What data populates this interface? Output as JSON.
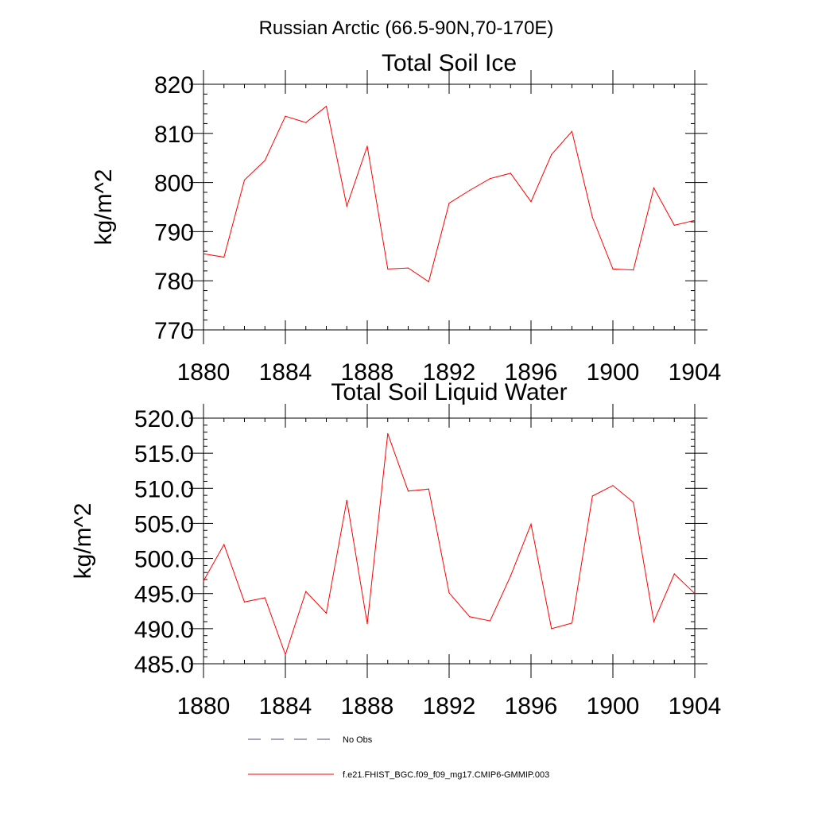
{
  "figure": {
    "main_title": "Russian Arctic (66.5-90N,70-170E)"
  },
  "chart_data": [
    {
      "type": "line",
      "title": "Total Soil Ice",
      "xlabel": "",
      "ylabel": "kg/m^2",
      "xlim": [
        1880,
        1904
      ],
      "ylim": [
        770,
        820
      ],
      "x_ticks": [
        1880,
        1884,
        1888,
        1892,
        1896,
        1900,
        1904
      ],
      "x_tick_labels": [
        "1880",
        "1884",
        "1888",
        "1892",
        "1896",
        "1900",
        "1904"
      ],
      "y_ticks": [
        770,
        780,
        790,
        800,
        810,
        820
      ],
      "y_tick_labels": [
        "770",
        "780",
        "790",
        "800",
        "810",
        "820"
      ],
      "grid": false,
      "series": [
        {
          "name": "f.e21.FHIST_BGC.f09_f09_mg17.CMIP6-GMMIP.003",
          "color": "#ff0000",
          "x": [
            1880,
            1881,
            1882,
            1883,
            1884,
            1885,
            1886,
            1887,
            1888,
            1889,
            1890,
            1891,
            1892,
            1893,
            1894,
            1895,
            1896,
            1897,
            1898,
            1899,
            1900,
            1901,
            1902,
            1903,
            1904
          ],
          "values": [
            785.5,
            784.8,
            800.5,
            804.5,
            813.5,
            812.2,
            815.5,
            795.2,
            807.4,
            782.4,
            782.6,
            779.8,
            795.8,
            798.4,
            800.8,
            801.9,
            796.1,
            805.7,
            810.4,
            792.9,
            782.4,
            782.2,
            798.9,
            791.3,
            792.3
          ]
        }
      ]
    },
    {
      "type": "line",
      "title": "Total Soil Liquid Water",
      "xlabel": "",
      "ylabel": "kg/m^2",
      "xlim": [
        1880,
        1904
      ],
      "ylim": [
        485,
        520
      ],
      "x_ticks": [
        1880,
        1884,
        1888,
        1892,
        1896,
        1900,
        1904
      ],
      "x_tick_labels": [
        "1880",
        "1884",
        "1888",
        "1892",
        "1896",
        "1900",
        "1904"
      ],
      "y_ticks": [
        485,
        490,
        495,
        500,
        505,
        510,
        515,
        520
      ],
      "y_tick_labels": [
        "485.0",
        "490.0",
        "495.0",
        "500.0",
        "505.0",
        "510.0",
        "515.0",
        "520.0"
      ],
      "grid": false,
      "series": [
        {
          "name": "f.e21.FHIST_BGC.f09_f09_mg17.CMIP6-GMMIP.003",
          "color": "#ff0000",
          "x": [
            1880,
            1881,
            1882,
            1883,
            1884,
            1885,
            1886,
            1887,
            1888,
            1889,
            1890,
            1891,
            1892,
            1893,
            1894,
            1895,
            1896,
            1897,
            1898,
            1899,
            1900,
            1901,
            1902,
            1903,
            1904
          ],
          "values": [
            496.8,
            502.0,
            493.8,
            494.4,
            486.3,
            495.3,
            492.2,
            508.3,
            490.7,
            517.8,
            509.6,
            509.9,
            495.1,
            491.7,
            491.1,
            497.5,
            504.9,
            490.0,
            490.8,
            508.9,
            510.4,
            508.0,
            491.0,
            497.8,
            495.0
          ]
        }
      ]
    }
  ],
  "legend": {
    "placement": "bottom",
    "entries": [
      {
        "label": "No Obs",
        "style": "dashed",
        "color": "#4a4a7a"
      },
      {
        "label": "f.e21.FHIST_BGC.f09_f09_mg17.CMIP6-GMMIP.003",
        "style": "solid",
        "color": "#ff0000"
      }
    ]
  }
}
